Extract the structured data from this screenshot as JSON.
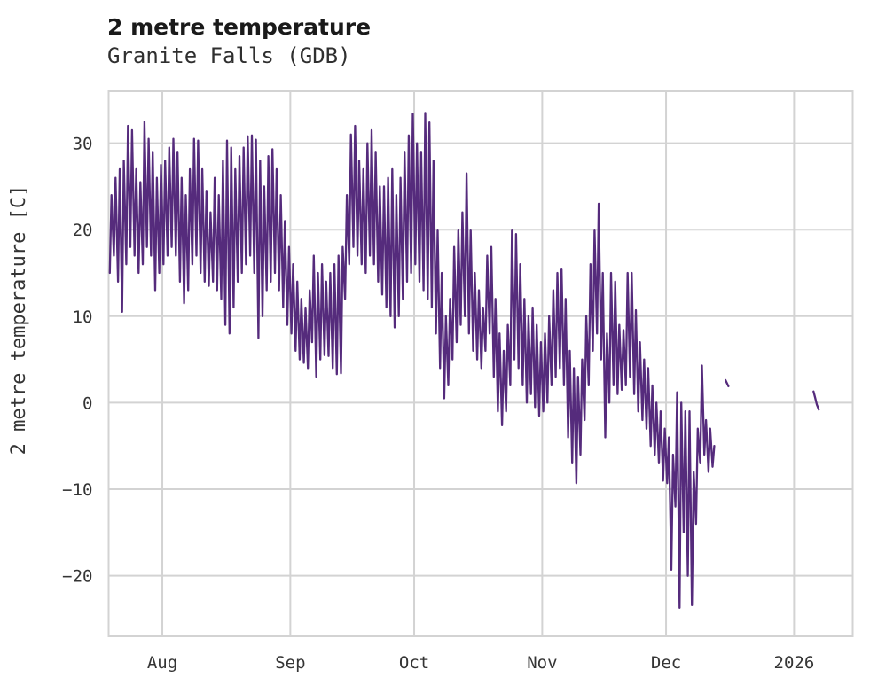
{
  "header": {
    "title": "2 metre temperature",
    "subtitle": "Granite Falls (GDB)"
  },
  "chart_data": {
    "type": "line",
    "title": "2 metre temperature",
    "subtitle": "Granite Falls (GDB)",
    "xlabel": "",
    "ylabel": "2 metre temperature [C]",
    "legend": "none",
    "grid": "on",
    "grid_color": "#d3d3d3",
    "line_color": "#552b7c",
    "x_axis": {
      "unit": "day index from left edge of plot (about two weeks before Aug)",
      "lim": [
        0,
        180.2
      ],
      "ticks": [
        {
          "x": 13,
          "label": "Aug"
        },
        {
          "x": 44,
          "label": "Sep"
        },
        {
          "x": 74,
          "label": "Oct"
        },
        {
          "x": 105,
          "label": "Nov"
        },
        {
          "x": 135,
          "label": "Dec"
        },
        {
          "x": 166,
          "label": "2026"
        }
      ]
    },
    "y_axis": {
      "lim": [
        -27,
        36
      ],
      "ticks": [
        {
          "v": 30,
          "label": "30"
        },
        {
          "v": 20,
          "label": "20"
        },
        {
          "v": 10,
          "label": "10"
        },
        {
          "v": 0,
          "label": "0"
        },
        {
          "v": -10,
          "label": "−10"
        },
        {
          "v": -20,
          "label": "−20"
        }
      ]
    },
    "series": [
      {
        "name": "2 metre temperature",
        "sampling": "daily minimum and maximum read from the hourly trace; rendered as a diurnal zigzag (min near 06h, max near 15h)",
        "start_day": 0,
        "daily_min": [
          15,
          17,
          14,
          10.5,
          16,
          18,
          17,
          15,
          16,
          18,
          17,
          13,
          15,
          16,
          17,
          18,
          17,
          14,
          11.5,
          13,
          16,
          17,
          15,
          14,
          13.5,
          14,
          13,
          12,
          9,
          8,
          11,
          14,
          15,
          16,
          17,
          15,
          7.5,
          10,
          13,
          14,
          15,
          13,
          11,
          9,
          8,
          6,
          5,
          4.6,
          4,
          7,
          3,
          5,
          5.5,
          5.4,
          4,
          3.3,
          3.4,
          12,
          16,
          18,
          17,
          16,
          15,
          17,
          16,
          14,
          12.5,
          11,
          10,
          8.7,
          10,
          12,
          14,
          15,
          16,
          14,
          13,
          12,
          11,
          8,
          4,
          0.5,
          2,
          5,
          7,
          9,
          10,
          8,
          6,
          5,
          4,
          6,
          8,
          3,
          -1,
          -2.6,
          -1,
          2,
          5,
          4,
          2,
          0,
          1,
          -0.5,
          -1.5,
          -1,
          0,
          2,
          3,
          4,
          2,
          -4,
          -7,
          -9.3,
          -6,
          -2,
          2,
          6,
          8,
          5,
          -4,
          0,
          2,
          1,
          1.5,
          2,
          3,
          1,
          -1,
          -2,
          -3,
          -5,
          -6,
          -7,
          -9,
          -9.3,
          -19.3,
          -12,
          -23.7,
          -15,
          -20,
          -23.4,
          -14,
          -7,
          -6,
          -8,
          -7.4
        ],
        "daily_max": [
          24,
          26,
          27,
          28,
          32,
          31.5,
          27,
          25.5,
          32.5,
          30.5,
          29,
          26,
          27.5,
          28,
          29.5,
          30.5,
          29,
          26,
          24,
          27,
          30.5,
          30.3,
          27,
          24.5,
          22,
          26,
          24,
          28,
          30.3,
          29.5,
          27,
          28.5,
          29.5,
          30.8,
          30.9,
          30.4,
          28,
          25,
          28.5,
          29.3,
          27,
          24,
          21,
          18,
          16,
          14,
          12,
          11,
          13,
          17,
          15,
          16,
          14,
          15,
          16,
          17,
          18,
          24,
          31,
          32,
          28,
          27,
          30,
          31.5,
          29,
          25,
          25,
          26,
          27,
          24,
          26,
          29,
          30.9,
          33.4,
          30,
          29,
          33.5,
          32.4,
          28,
          20,
          15,
          10,
          12,
          18,
          20,
          22,
          26.5,
          20,
          15,
          13,
          11,
          17,
          18,
          12,
          8,
          6,
          9,
          20,
          19.5,
          16,
          12,
          10,
          11,
          9,
          7,
          8,
          10,
          13,
          15,
          15.5,
          12,
          6,
          4,
          3,
          5,
          10,
          16,
          20,
          23,
          15,
          8,
          15,
          14,
          9,
          8.4,
          15,
          15,
          10.7,
          7,
          5,
          4,
          2,
          0,
          -1,
          -3,
          -4,
          -6,
          1.2,
          0,
          -1,
          -1,
          -8,
          -3,
          4.3,
          -2,
          -3,
          -5
        ],
        "detached_segments": [
          {
            "x": [
              149.4,
              150.1
            ],
            "y": [
              2.6,
              1.9
            ]
          },
          {
            "x": [
              170.7,
              171.1,
              171.5,
              172.0
            ],
            "y": [
              1.3,
              0.6,
              -0.2,
              -0.8
            ]
          }
        ]
      }
    ]
  }
}
